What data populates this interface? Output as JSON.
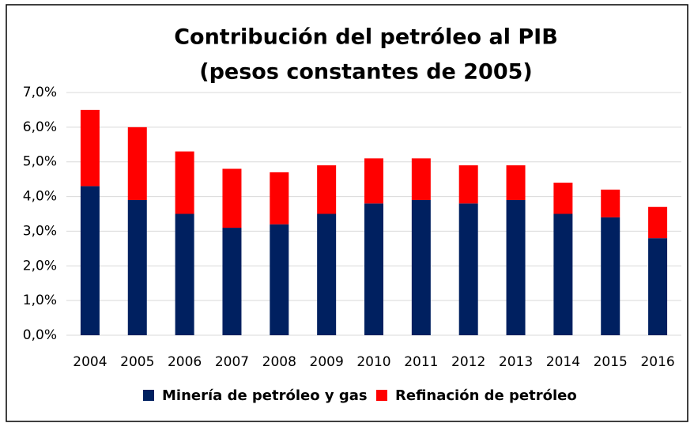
{
  "chart_data": {
    "type": "stacked_bar",
    "title": [
      "Contribución del petróleo al PIB",
      "(pesos constantes de 2005)"
    ],
    "categories": [
      "2004",
      "2005",
      "2006",
      "2007",
      "2008",
      "2009",
      "2010",
      "2011",
      "2012",
      "2013",
      "2014",
      "2015",
      "2016"
    ],
    "series": [
      {
        "name": "Minería de petróleo y gas",
        "color": "#002060",
        "values": [
          4.3,
          3.9,
          3.5,
          3.1,
          3.2,
          3.5,
          3.8,
          3.9,
          3.8,
          3.9,
          3.5,
          3.4,
          2.8
        ]
      },
      {
        "name": "Refinación de petróleo",
        "color": "#ff0000",
        "values": [
          2.2,
          2.1,
          1.8,
          1.7,
          1.5,
          1.4,
          1.3,
          1.2,
          1.1,
          1.0,
          0.9,
          0.8,
          0.9
        ]
      }
    ],
    "ylim": [
      0,
      7
    ],
    "yticks": [
      {
        "value": 0,
        "label": "0,0%"
      },
      {
        "value": 1,
        "label": "1,0%"
      },
      {
        "value": 2,
        "label": "2,0%"
      },
      {
        "value": 3,
        "label": "3,0%"
      },
      {
        "value": 4,
        "label": "4,0%"
      },
      {
        "value": 5,
        "label": "5,0%"
      },
      {
        "value": 6,
        "label": "6,0%"
      },
      {
        "value": 7,
        "label": "7,0%"
      }
    ],
    "grid": true,
    "legend": "bottom"
  }
}
